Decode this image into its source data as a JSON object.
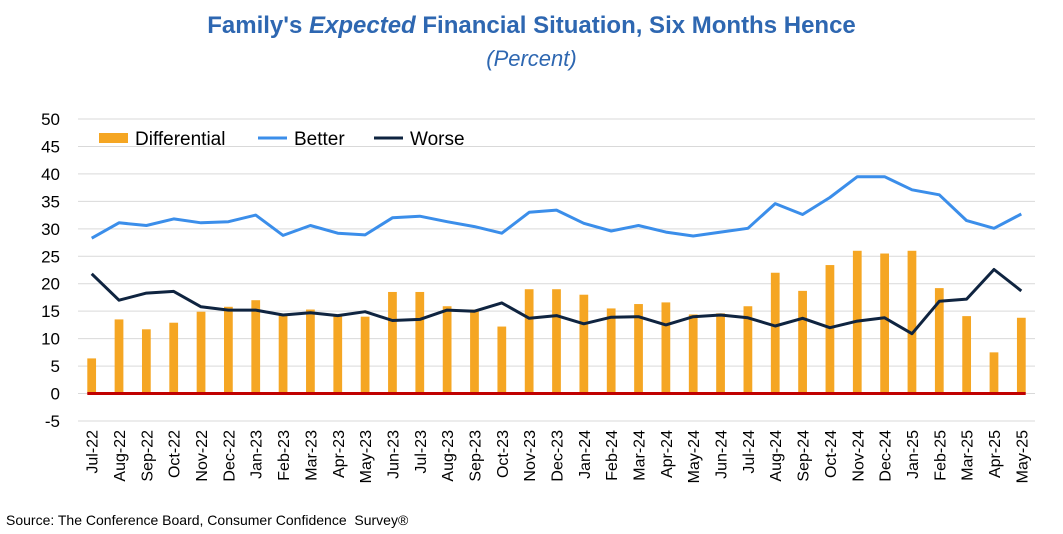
{
  "title": {
    "part1": "Family's ",
    "part2": "Expected",
    "part3": " Financial Situation, Six Months Hence"
  },
  "subtitle": "(Percent)",
  "source": "Source: The Conference Board, Consumer Confidence  Survey®",
  "colors": {
    "title": "#2E67B1",
    "differential": "#F5A623",
    "better": "#3B8EEA",
    "worse": "#0F2440",
    "zero_line": "#C00000"
  },
  "chart_data": {
    "type": "bar",
    "categories": [
      "Jul-22",
      "Aug-22",
      "Sep-22",
      "Oct-22",
      "Nov-22",
      "Dec-22",
      "Jan-23",
      "Feb-23",
      "Mar-23",
      "Apr-23",
      "May-23",
      "Jun-23",
      "Jul-23",
      "Aug-23",
      "Sep-23",
      "Oct-23",
      "Nov-23",
      "Dec-23",
      "Jan-24",
      "Feb-24",
      "Mar-24",
      "Apr-24",
      "May-24",
      "Jun-24",
      "Jul-24",
      "Aug-24",
      "Sep-24",
      "Oct-24",
      "Nov-24",
      "Dec-24",
      "Jan-25",
      "Feb-25",
      "Mar-25",
      "Apr-25",
      "May-25"
    ],
    "series": [
      {
        "name": "Differential",
        "kind": "bar",
        "values": [
          6.4,
          13.5,
          11.7,
          12.9,
          14.9,
          15.8,
          17.0,
          14.5,
          15.3,
          14.4,
          14.0,
          18.5,
          18.5,
          15.9,
          15.3,
          12.2,
          19.0,
          19.0,
          18.0,
          15.5,
          16.3,
          16.6,
          14.4,
          14.6,
          15.9,
          22.0,
          18.7,
          23.4,
          26.0,
          25.5,
          26.0,
          19.2,
          14.1,
          7.5,
          13.8
        ]
      },
      {
        "name": "Better",
        "kind": "line",
        "values": [
          28.3,
          31.1,
          30.6,
          31.8,
          31.1,
          31.3,
          32.5,
          28.8,
          30.6,
          29.2,
          28.9,
          32.0,
          32.3,
          31.3,
          30.4,
          29.2,
          33.0,
          33.4,
          31.0,
          29.6,
          30.6,
          29.4,
          28.7,
          29.4,
          30.1,
          34.6,
          32.6,
          35.7,
          39.5,
          39.5,
          37.1,
          36.2,
          31.5,
          30.1,
          32.7
        ]
      },
      {
        "name": "Worse",
        "kind": "line",
        "values": [
          21.8,
          17.0,
          18.3,
          18.6,
          15.8,
          15.2,
          15.2,
          14.3,
          14.7,
          14.2,
          14.9,
          13.3,
          13.5,
          15.2,
          15.0,
          16.5,
          13.7,
          14.2,
          12.7,
          13.9,
          14.0,
          12.5,
          14.0,
          14.3,
          13.8,
          12.3,
          13.7,
          12.0,
          13.2,
          13.8,
          10.9,
          16.8,
          17.2,
          22.6,
          18.7
        ]
      }
    ],
    "ylim": [
      -5,
      50
    ],
    "yticks": [
      -5,
      0,
      5,
      10,
      15,
      20,
      25,
      30,
      35,
      40,
      45,
      50
    ],
    "grid": true,
    "legend_position": "top-left"
  }
}
